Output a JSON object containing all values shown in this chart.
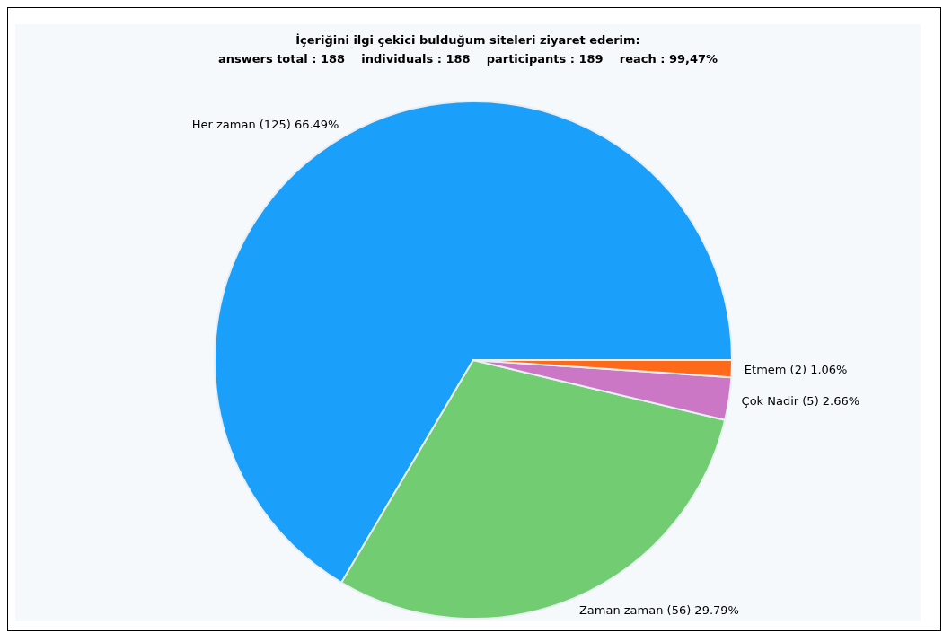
{
  "chart_data": {
    "type": "pie",
    "title": "İçeriğini ilgi çekici bulduğum siteleri ziyaret ederim:",
    "subtitle": "answers total : 188    individuals : 188    participants : 189    reach : 99,47%",
    "categories": [
      "Her zaman",
      "Zaman zaman",
      "Çok Nadir",
      "Etmem"
    ],
    "values": [
      125,
      56,
      5,
      2
    ],
    "value_labels": [
      "(125) 66.49%",
      "(56) 29.79%",
      "(5) 2.66%",
      "(2) 1.06%"
    ],
    "colors": [
      "#1a9ffa",
      "#72cd72",
      "#cc77c5",
      "#ff6a1a"
    ],
    "legend": false
  }
}
